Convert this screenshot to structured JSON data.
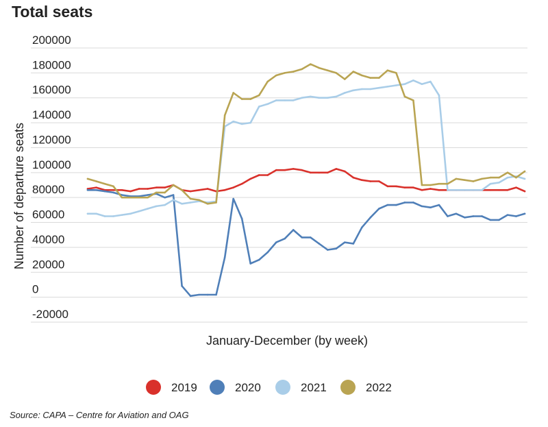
{
  "title": "Total seats",
  "source": "Source: CAPA – Centre for Aviation and OAG",
  "chart_data": {
    "type": "line",
    "xlabel": "January-December (by week)",
    "ylabel": "Number of departure seats",
    "ylim": [
      -20000,
      200000
    ],
    "yticks": [
      -20000,
      0,
      20000,
      40000,
      60000,
      80000,
      100000,
      120000,
      140000,
      160000,
      180000,
      200000
    ],
    "ytick_labels": [
      "-20000",
      "0",
      "20000",
      "40000",
      "60000",
      "80000",
      "100000",
      "120000",
      "140000",
      "160000",
      "180000",
      "200000"
    ],
    "grid": true,
    "legend_position": "bottom",
    "x": [
      1,
      2,
      3,
      4,
      5,
      6,
      7,
      8,
      9,
      10,
      11,
      12,
      13,
      14,
      15,
      16,
      17,
      18,
      19,
      20,
      21,
      22,
      23,
      24,
      25,
      26,
      27,
      28,
      29,
      30,
      31,
      32,
      33,
      34,
      35,
      36,
      37,
      38,
      39,
      40,
      41,
      42,
      43,
      44,
      45,
      46,
      47,
      48,
      49,
      50,
      51,
      52
    ],
    "series": [
      {
        "name": "2019",
        "color": "#d9312b",
        "values": [
          87000,
          88000,
          86000,
          86000,
          86000,
          85000,
          87000,
          87000,
          88000,
          88000,
          90000,
          86000,
          85000,
          86000,
          87000,
          85000,
          86000,
          88000,
          91000,
          95000,
          98000,
          98000,
          102000,
          102000,
          103000,
          102000,
          100000,
          100000,
          100000,
          103000,
          101000,
          96000,
          94000,
          93000,
          93000,
          89000,
          89000,
          88000,
          88000,
          86000,
          87000,
          86000,
          86000,
          86000,
          86000,
          86000,
          86000,
          86000,
          86000,
          86000,
          88000,
          85000
        ]
      },
      {
        "name": "2020",
        "color": "#4f7fb8",
        "values": [
          86000,
          86000,
          85000,
          84000,
          82000,
          81000,
          81000,
          82000,
          83000,
          80000,
          82000,
          9000,
          1000,
          2000,
          2000,
          2000,
          32000,
          79000,
          63000,
          27000,
          30000,
          36000,
          44000,
          47000,
          54000,
          48000,
          48000,
          43000,
          38000,
          39000,
          44000,
          43000,
          56000,
          64000,
          71000,
          74000,
          74000,
          76000,
          76000,
          73000,
          72000,
          74000,
          65000,
          67000,
          64000,
          65000,
          65000,
          62000,
          62000,
          66000,
          65000,
          67000
        ]
      },
      {
        "name": "2021",
        "color": "#a9cde8",
        "values": [
          67000,
          67000,
          65000,
          65000,
          66000,
          67000,
          69000,
          71000,
          73000,
          74000,
          78000,
          75000,
          76000,
          77000,
          76000,
          77000,
          137000,
          141000,
          139000,
          140000,
          153000,
          155000,
          158000,
          158000,
          158000,
          160000,
          161000,
          160000,
          160000,
          161000,
          164000,
          166000,
          167000,
          167000,
          168000,
          169000,
          170000,
          171000,
          174000,
          171000,
          173000,
          162000,
          86000,
          86000,
          86000,
          86000,
          86000,
          91000,
          92000,
          96000,
          97000,
          95000
        ]
      },
      {
        "name": "2022",
        "color": "#b9a452",
        "values": [
          95000,
          93000,
          91000,
          89000,
          80000,
          80000,
          80000,
          80000,
          84000,
          84000,
          90000,
          86000,
          79000,
          78000,
          75000,
          76000,
          146000,
          164000,
          159000,
          159000,
          162000,
          173000,
          178000,
          180000,
          181000,
          183000,
          187000,
          184000,
          182000,
          180000,
          175000,
          181000,
          178000,
          176000,
          176000,
          182000,
          180000,
          161000,
          158000,
          90000,
          90000,
          91000,
          91000,
          95000,
          94000,
          93000,
          95000,
          96000,
          96000,
          100000,
          96000,
          101000
        ]
      }
    ]
  }
}
